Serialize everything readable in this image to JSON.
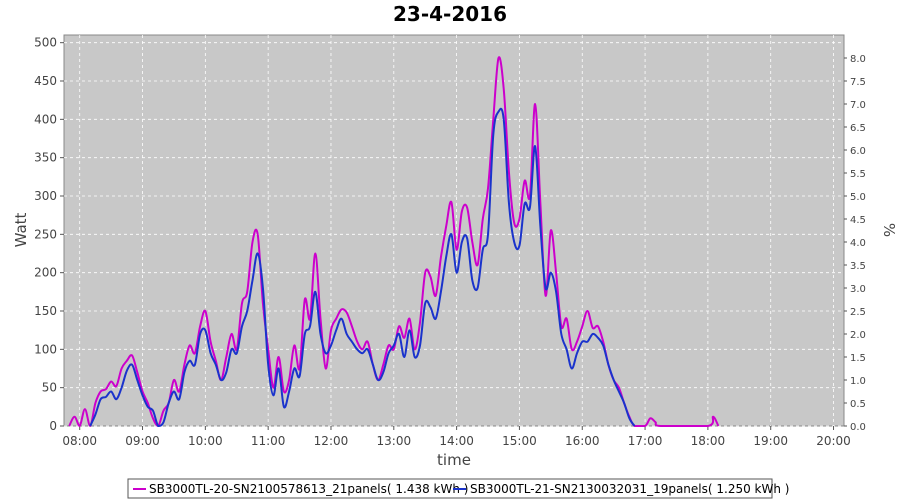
{
  "chart_data": {
    "type": "line",
    "title": "23-4-2016",
    "xlabel": "time",
    "ylabel": "Watt",
    "y2label": "%",
    "ylim": [
      0,
      510
    ],
    "y2lim": [
      0,
      8.5
    ],
    "xlim": [
      "07:45",
      "20:10"
    ],
    "x_ticks": [
      "08:00",
      "09:00",
      "10:00",
      "11:00",
      "12:00",
      "13:00",
      "14:00",
      "15:00",
      "16:00",
      "17:00",
      "18:00",
      "19:00",
      "20:00"
    ],
    "y_ticks": [
      0,
      50,
      100,
      150,
      200,
      250,
      300,
      350,
      400,
      450,
      500
    ],
    "y2_ticks": [
      "0.0",
      "0.5",
      "1.0",
      "1.5",
      "2.0",
      "2.5",
      "3.0",
      "3.5",
      "4.0",
      "4.5",
      "5.0",
      "5.5",
      "6.0",
      "6.5",
      "7.0",
      "7.5",
      "8.0"
    ],
    "grid": true,
    "legend_position": "bottom",
    "background": "#c8c8c8",
    "series": [
      {
        "name": "SB3000TL-20-SN2100578613_21panels( 1.438 kWh )",
        "color": "#cc00cc",
        "points": [
          [
            "07:50",
            0
          ],
          [
            "07:55",
            12
          ],
          [
            "08:00",
            0
          ],
          [
            "08:05",
            22
          ],
          [
            "08:10",
            0
          ],
          [
            "08:15",
            30
          ],
          [
            "08:20",
            45
          ],
          [
            "08:25",
            48
          ],
          [
            "08:30",
            58
          ],
          [
            "08:35",
            52
          ],
          [
            "08:40",
            75
          ],
          [
            "08:45",
            85
          ],
          [
            "08:50",
            92
          ],
          [
            "08:55",
            70
          ],
          [
            "09:00",
            45
          ],
          [
            "09:05",
            30
          ],
          [
            "09:10",
            10
          ],
          [
            "09:15",
            0
          ],
          [
            "09:20",
            20
          ],
          [
            "09:25",
            30
          ],
          [
            "09:30",
            60
          ],
          [
            "09:35",
            45
          ],
          [
            "09:40",
            80
          ],
          [
            "09:45",
            105
          ],
          [
            "09:50",
            95
          ],
          [
            "09:55",
            130
          ],
          [
            "10:00",
            150
          ],
          [
            "10:05",
            110
          ],
          [
            "10:10",
            85
          ],
          [
            "10:15",
            60
          ],
          [
            "10:20",
            90
          ],
          [
            "10:25",
            120
          ],
          [
            "10:30",
            100
          ],
          [
            "10:35",
            160
          ],
          [
            "10:40",
            175
          ],
          [
            "10:45",
            240
          ],
          [
            "10:50",
            250
          ],
          [
            "10:55",
            160
          ],
          [
            "11:00",
            100
          ],
          [
            "11:05",
            50
          ],
          [
            "11:10",
            90
          ],
          [
            "11:15",
            45
          ],
          [
            "11:20",
            60
          ],
          [
            "11:25",
            105
          ],
          [
            "11:30",
            75
          ],
          [
            "11:35",
            165
          ],
          [
            "11:40",
            140
          ],
          [
            "11:45",
            225
          ],
          [
            "11:50",
            140
          ],
          [
            "11:55",
            75
          ],
          [
            "12:00",
            125
          ],
          [
            "12:05",
            140
          ],
          [
            "12:10",
            152
          ],
          [
            "12:15",
            148
          ],
          [
            "12:20",
            130
          ],
          [
            "12:25",
            110
          ],
          [
            "12:30",
            100
          ],
          [
            "12:35",
            110
          ],
          [
            "12:40",
            80
          ],
          [
            "12:45",
            60
          ],
          [
            "12:50",
            80
          ],
          [
            "12:55",
            105
          ],
          [
            "13:00",
            100
          ],
          [
            "13:05",
            130
          ],
          [
            "13:10",
            115
          ],
          [
            "13:15",
            140
          ],
          [
            "13:20",
            100
          ],
          [
            "13:25",
            135
          ],
          [
            "13:30",
            200
          ],
          [
            "13:35",
            195
          ],
          [
            "13:40",
            170
          ],
          [
            "13:45",
            220
          ],
          [
            "13:50",
            260
          ],
          [
            "13:55",
            292
          ],
          [
            "14:00",
            230
          ],
          [
            "14:05",
            280
          ],
          [
            "14:10",
            285
          ],
          [
            "14:15",
            240
          ],
          [
            "14:20",
            210
          ],
          [
            "14:25",
            270
          ],
          [
            "14:30",
            310
          ],
          [
            "14:35",
            400
          ],
          [
            "14:40",
            480
          ],
          [
            "14:45",
            440
          ],
          [
            "14:50",
            330
          ],
          [
            "14:55",
            265
          ],
          [
            "15:00",
            270
          ],
          [
            "15:05",
            320
          ],
          [
            "15:10",
            300
          ],
          [
            "15:15",
            420
          ],
          [
            "15:20",
            290
          ],
          [
            "15:25",
            170
          ],
          [
            "15:30",
            255
          ],
          [
            "15:35",
            200
          ],
          [
            "15:40",
            130
          ],
          [
            "15:45",
            140
          ],
          [
            "15:50",
            100
          ],
          [
            "15:55",
            110
          ],
          [
            "16:00",
            130
          ],
          [
            "16:05",
            150
          ],
          [
            "16:10",
            128
          ],
          [
            "16:15",
            130
          ],
          [
            "16:20",
            110
          ],
          [
            "16:25",
            80
          ],
          [
            "16:30",
            60
          ],
          [
            "16:35",
            50
          ],
          [
            "16:40",
            30
          ],
          [
            "16:45",
            12
          ],
          [
            "16:50",
            0
          ],
          [
            "17:00",
            0
          ],
          [
            "17:05",
            10
          ],
          [
            "17:10",
            5
          ],
          [
            "17:15",
            0
          ],
          [
            "18:00",
            0
          ],
          [
            "18:05",
            12
          ],
          [
            "18:10",
            0
          ]
        ]
      },
      {
        "name": "SB3000TL-21-SN2130032031_19panels( 1.250 kWh )",
        "color": "#1a33cc",
        "points": [
          [
            "08:10",
            0
          ],
          [
            "08:15",
            15
          ],
          [
            "08:20",
            35
          ],
          [
            "08:25",
            38
          ],
          [
            "08:30",
            45
          ],
          [
            "08:35",
            35
          ],
          [
            "08:40",
            50
          ],
          [
            "08:45",
            72
          ],
          [
            "08:50",
            80
          ],
          [
            "08:55",
            60
          ],
          [
            "09:00",
            40
          ],
          [
            "09:05",
            25
          ],
          [
            "09:10",
            20
          ],
          [
            "09:15",
            0
          ],
          [
            "09:20",
            5
          ],
          [
            "09:25",
            30
          ],
          [
            "09:30",
            45
          ],
          [
            "09:35",
            35
          ],
          [
            "09:40",
            70
          ],
          [
            "09:45",
            85
          ],
          [
            "09:50",
            80
          ],
          [
            "09:55",
            120
          ],
          [
            "10:00",
            125
          ],
          [
            "10:05",
            95
          ],
          [
            "10:10",
            80
          ],
          [
            "10:15",
            60
          ],
          [
            "10:20",
            70
          ],
          [
            "10:25",
            100
          ],
          [
            "10:30",
            95
          ],
          [
            "10:35",
            130
          ],
          [
            "10:40",
            150
          ],
          [
            "10:45",
            190
          ],
          [
            "10:50",
            225
          ],
          [
            "10:55",
            180
          ],
          [
            "11:00",
            80
          ],
          [
            "11:05",
            40
          ],
          [
            "11:10",
            75
          ],
          [
            "11:15",
            25
          ],
          [
            "11:20",
            45
          ],
          [
            "11:25",
            75
          ],
          [
            "11:30",
            65
          ],
          [
            "11:35",
            120
          ],
          [
            "11:40",
            130
          ],
          [
            "11:45",
            175
          ],
          [
            "11:50",
            120
          ],
          [
            "11:55",
            95
          ],
          [
            "12:00",
            105
          ],
          [
            "12:05",
            125
          ],
          [
            "12:10",
            140
          ],
          [
            "12:15",
            120
          ],
          [
            "12:20",
            110
          ],
          [
            "12:25",
            100
          ],
          [
            "12:30",
            95
          ],
          [
            "12:35",
            100
          ],
          [
            "12:40",
            80
          ],
          [
            "12:45",
            60
          ],
          [
            "12:50",
            70
          ],
          [
            "12:55",
            95
          ],
          [
            "13:00",
            105
          ],
          [
            "13:05",
            120
          ],
          [
            "13:10",
            90
          ],
          [
            "13:15",
            125
          ],
          [
            "13:20",
            90
          ],
          [
            "13:25",
            105
          ],
          [
            "13:30",
            160
          ],
          [
            "13:35",
            155
          ],
          [
            "13:40",
            140
          ],
          [
            "13:45",
            175
          ],
          [
            "13:50",
            220
          ],
          [
            "13:55",
            250
          ],
          [
            "14:00",
            200
          ],
          [
            "14:05",
            240
          ],
          [
            "14:10",
            245
          ],
          [
            "14:15",
            190
          ],
          [
            "14:20",
            180
          ],
          [
            "14:25",
            230
          ],
          [
            "14:30",
            250
          ],
          [
            "14:35",
            380
          ],
          [
            "14:40",
            410
          ],
          [
            "14:45",
            400
          ],
          [
            "14:50",
            290
          ],
          [
            "14:55",
            240
          ],
          [
            "15:00",
            235
          ],
          [
            "15:05",
            290
          ],
          [
            "15:10",
            285
          ],
          [
            "15:15",
            365
          ],
          [
            "15:20",
            260
          ],
          [
            "15:25",
            180
          ],
          [
            "15:30",
            200
          ],
          [
            "15:35",
            175
          ],
          [
            "15:40",
            120
          ],
          [
            "15:45",
            100
          ],
          [
            "15:50",
            75
          ],
          [
            "15:55",
            95
          ],
          [
            "16:00",
            110
          ],
          [
            "16:05",
            110
          ],
          [
            "16:10",
            120
          ],
          [
            "16:15",
            115
          ],
          [
            "16:20",
            105
          ],
          [
            "16:25",
            80
          ],
          [
            "16:30",
            60
          ],
          [
            "16:35",
            45
          ],
          [
            "16:40",
            30
          ],
          [
            "16:45",
            10
          ],
          [
            "16:50",
            0
          ]
        ]
      }
    ]
  }
}
